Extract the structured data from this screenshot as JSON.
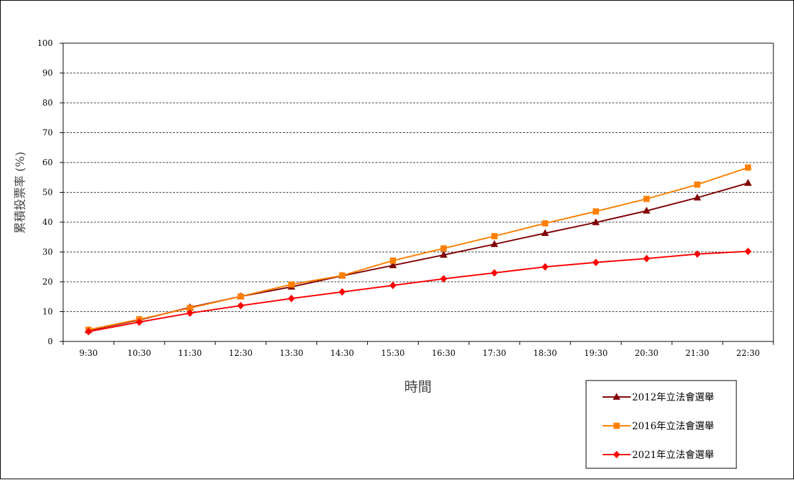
{
  "chart_data": {
    "type": "line",
    "title": "",
    "xlabel": "時間",
    "ylabel": "累積投票率 (%)",
    "ylim": [
      0,
      100
    ],
    "yticks": [
      0,
      10,
      20,
      30,
      40,
      50,
      60,
      70,
      80,
      90,
      100
    ],
    "grid": "horizontal dashed",
    "legend_position": "bottom-right",
    "categories": [
      "9:30",
      "10:30",
      "11:30",
      "12:30",
      "13:30",
      "14:30",
      "15:30",
      "16:30",
      "17:30",
      "18:30",
      "19:30",
      "20:30",
      "21:30",
      "22:30"
    ],
    "series": [
      {
        "name": "2012年立法會選舉",
        "color": "#800000",
        "marker": "triangle",
        "values": [
          3.7,
          7.2,
          11.4,
          15.1,
          18.3,
          22.0,
          25.5,
          29.0,
          32.6,
          36.3,
          39.9,
          43.8,
          48.2,
          53.1
        ]
      },
      {
        "name": "2016年立法會選舉",
        "color": "#FF7F00",
        "marker": "square",
        "values": [
          3.9,
          7.4,
          11.2,
          15.1,
          19.1,
          22.1,
          27.1,
          31.2,
          35.3,
          39.6,
          43.6,
          47.8,
          52.6,
          58.3
        ]
      },
      {
        "name": "2021年立法會選舉",
        "color": "#FF0000",
        "marker": "diamond",
        "values": [
          3.3,
          6.5,
          9.5,
          12.0,
          14.4,
          16.6,
          18.8,
          21.0,
          23.0,
          25.0,
          26.5,
          27.8,
          29.3,
          30.2
        ]
      }
    ]
  }
}
